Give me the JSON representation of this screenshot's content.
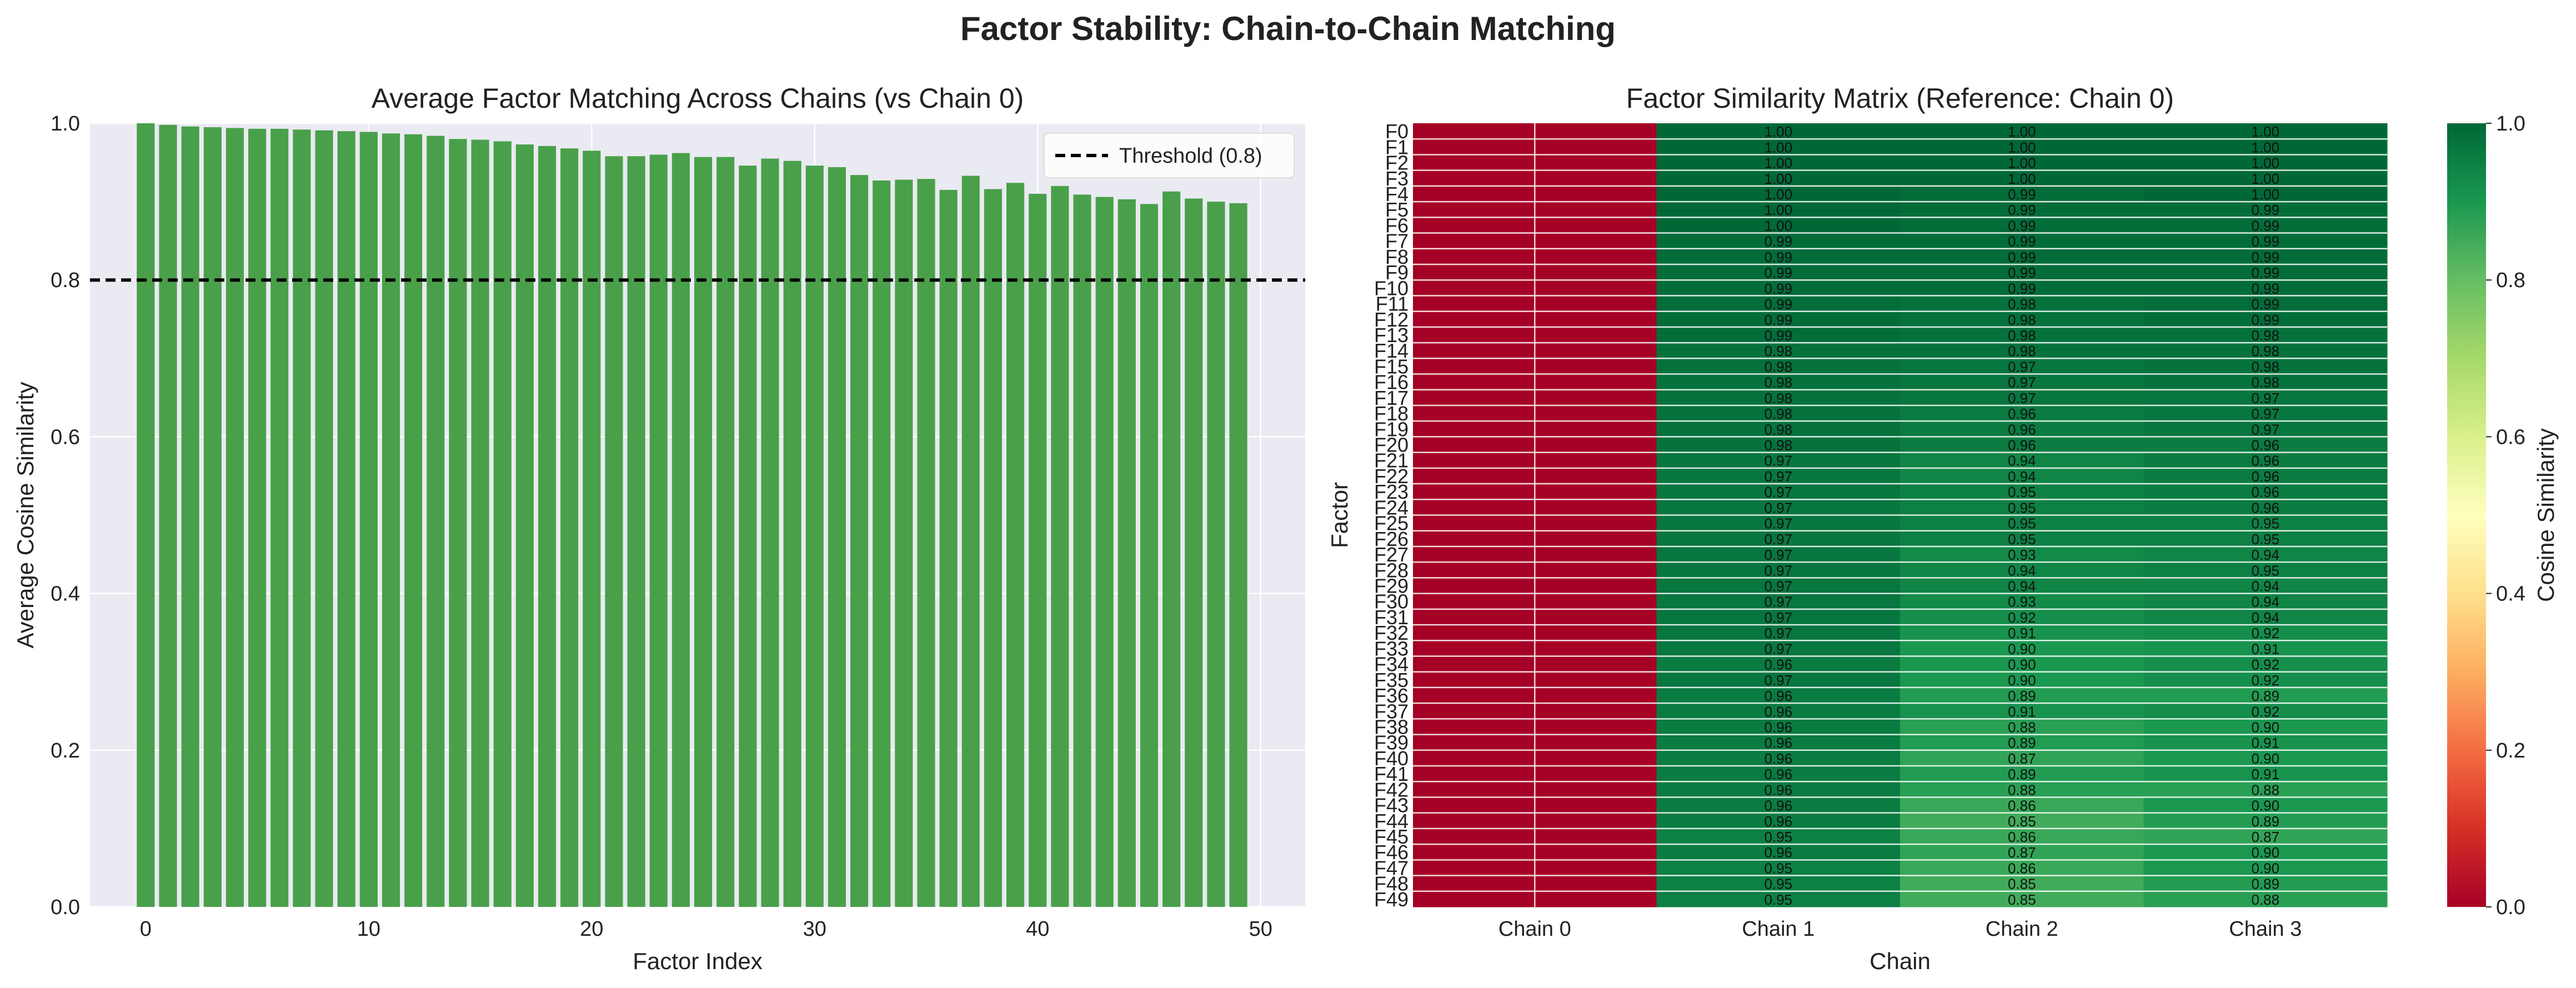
{
  "figure": {
    "suptitle": "Factor Stability: Chain-to-Chain Matching"
  },
  "chart_data": [
    {
      "type": "bar",
      "title": "Average Factor Matching Across Chains (vs Chain 0)",
      "xlabel": "Factor Index",
      "ylabel": "Average Cosine Similarity",
      "xlim": [
        -2.5,
        52
      ],
      "ylim": [
        0,
        1.0
      ],
      "xticks": [
        0,
        10,
        20,
        30,
        40,
        50
      ],
      "yticks": [
        0.0,
        0.2,
        0.4,
        0.6,
        0.8,
        1.0
      ],
      "grid": true,
      "bar_color": "#4aa04a",
      "x": [
        0,
        1,
        2,
        3,
        4,
        5,
        6,
        7,
        8,
        9,
        10,
        11,
        12,
        13,
        14,
        15,
        16,
        17,
        18,
        19,
        20,
        21,
        22,
        23,
        24,
        25,
        26,
        27,
        28,
        29,
        30,
        31,
        32,
        33,
        34,
        35,
        36,
        37,
        38,
        39,
        40,
        41,
        42,
        43,
        44,
        45,
        46,
        47,
        48,
        49
      ],
      "values": [
        1.0,
        0.998,
        0.996,
        0.995,
        0.994,
        0.993,
        0.993,
        0.992,
        0.991,
        0.99,
        0.989,
        0.987,
        0.986,
        0.984,
        0.98,
        0.979,
        0.977,
        0.973,
        0.971,
        0.968,
        0.965,
        0.958,
        0.958,
        0.96,
        0.962,
        0.957,
        0.957,
        0.946,
        0.955,
        0.952,
        0.946,
        0.944,
        0.934,
        0.927,
        0.928,
        0.929,
        0.915,
        0.933,
        0.916,
        0.924,
        0.91,
        0.92,
        0.909,
        0.906,
        0.903,
        0.897,
        0.913,
        0.904,
        0.9,
        0.898
      ],
      "reference_line": {
        "y": 0.8,
        "label": "Threshold (0.8)",
        "style": "dashed",
        "color": "#000000"
      },
      "legend": {
        "placement": "top-right",
        "entries": [
          "Threshold (0.8)"
        ]
      }
    },
    {
      "type": "heatmap",
      "title": "Factor Similarity Matrix (Reference: Chain 0)",
      "xlabel": "Chain",
      "ylabel": "Factor",
      "columns": [
        "Chain 0",
        "Chain 1",
        "Chain 2",
        "Chain 3"
      ],
      "rows": [
        "F0",
        "F1",
        "F2",
        "F3",
        "F4",
        "F5",
        "F6",
        "F7",
        "F8",
        "F9",
        "F10",
        "F11",
        "F12",
        "F13",
        "F14",
        "F15",
        "F16",
        "F17",
        "F18",
        "F19",
        "F20",
        "F21",
        "F22",
        "F23",
        "F24",
        "F25",
        "F26",
        "F27",
        "F28",
        "F29",
        "F30",
        "F31",
        "F32",
        "F33",
        "F34",
        "F35",
        "F36",
        "F37",
        "F38",
        "F39",
        "F40",
        "F41",
        "F42",
        "F43",
        "F44",
        "F45",
        "F46",
        "F47",
        "F48",
        "F49"
      ],
      "colormap": "RdYlGn",
      "vmin": 0.0,
      "vmax": 1.0,
      "colorbar": {
        "label": "Cosine Similarity",
        "ticks": [
          0.0,
          0.2,
          0.4,
          0.6,
          0.8,
          1.0
        ]
      },
      "values": [
        [
          0.0,
          1.0,
          1.0,
          1.0
        ],
        [
          0.0,
          1.0,
          1.0,
          1.0
        ],
        [
          0.0,
          1.0,
          1.0,
          1.0
        ],
        [
          0.0,
          1.0,
          1.0,
          1.0
        ],
        [
          0.0,
          1.0,
          0.99,
          1.0
        ],
        [
          0.0,
          1.0,
          0.99,
          0.99
        ],
        [
          0.0,
          1.0,
          0.99,
          0.99
        ],
        [
          0.0,
          0.99,
          0.99,
          0.99
        ],
        [
          0.0,
          0.99,
          0.99,
          0.99
        ],
        [
          0.0,
          0.99,
          0.99,
          0.99
        ],
        [
          0.0,
          0.99,
          0.99,
          0.99
        ],
        [
          0.0,
          0.99,
          0.98,
          0.99
        ],
        [
          0.0,
          0.99,
          0.98,
          0.99
        ],
        [
          0.0,
          0.99,
          0.98,
          0.98
        ],
        [
          0.0,
          0.98,
          0.98,
          0.98
        ],
        [
          0.0,
          0.98,
          0.97,
          0.98
        ],
        [
          0.0,
          0.98,
          0.97,
          0.98
        ],
        [
          0.0,
          0.98,
          0.97,
          0.97
        ],
        [
          0.0,
          0.98,
          0.96,
          0.97
        ],
        [
          0.0,
          0.98,
          0.96,
          0.97
        ],
        [
          0.0,
          0.98,
          0.96,
          0.96
        ],
        [
          0.0,
          0.97,
          0.94,
          0.96
        ],
        [
          0.0,
          0.97,
          0.94,
          0.96
        ],
        [
          0.0,
          0.97,
          0.95,
          0.96
        ],
        [
          0.0,
          0.97,
          0.95,
          0.96
        ],
        [
          0.0,
          0.97,
          0.95,
          0.95
        ],
        [
          0.0,
          0.97,
          0.95,
          0.95
        ],
        [
          0.0,
          0.97,
          0.93,
          0.94
        ],
        [
          0.0,
          0.97,
          0.94,
          0.95
        ],
        [
          0.0,
          0.97,
          0.94,
          0.94
        ],
        [
          0.0,
          0.97,
          0.93,
          0.94
        ],
        [
          0.0,
          0.97,
          0.92,
          0.94
        ],
        [
          0.0,
          0.97,
          0.91,
          0.92
        ],
        [
          0.0,
          0.97,
          0.9,
          0.91
        ],
        [
          0.0,
          0.96,
          0.9,
          0.92
        ],
        [
          0.0,
          0.97,
          0.9,
          0.92
        ],
        [
          0.0,
          0.96,
          0.89,
          0.89
        ],
        [
          0.0,
          0.96,
          0.91,
          0.92
        ],
        [
          0.0,
          0.96,
          0.88,
          0.9
        ],
        [
          0.0,
          0.96,
          0.89,
          0.91
        ],
        [
          0.0,
          0.96,
          0.87,
          0.9
        ],
        [
          0.0,
          0.96,
          0.89,
          0.91
        ],
        [
          0.0,
          0.96,
          0.88,
          0.88
        ],
        [
          0.0,
          0.96,
          0.86,
          0.9
        ],
        [
          0.0,
          0.96,
          0.85,
          0.89
        ],
        [
          0.0,
          0.95,
          0.86,
          0.87
        ],
        [
          0.0,
          0.96,
          0.87,
          0.9
        ],
        [
          0.0,
          0.95,
          0.86,
          0.9
        ],
        [
          0.0,
          0.95,
          0.85,
          0.89
        ],
        [
          0.0,
          0.95,
          0.85,
          0.88
        ]
      ]
    }
  ]
}
